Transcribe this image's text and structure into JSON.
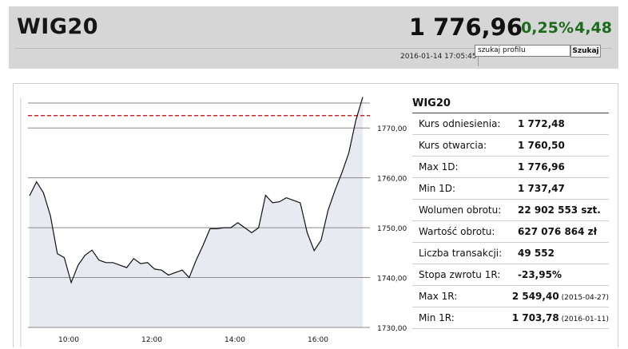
{
  "header": {
    "title": "WIG20",
    "price": "1 776,96",
    "change_pct": "0,25%",
    "change_abs": "4,48",
    "timestamp": "2016-01-14 17:05:45",
    "search_value": "szukaj profilu",
    "search_button": "Szukaj"
  },
  "colors": {
    "header_bg": "#d6d6d6",
    "positive": "#1c6b1c",
    "reference_line": "#e02020",
    "chart_fill": "#e8eaf2"
  },
  "stats": {
    "title": "WIG20",
    "rows": [
      {
        "label": "Kurs odniesienia:",
        "value": "1 772,48",
        "date": ""
      },
      {
        "label": "Kurs otwarcia:",
        "value": "1 760,50",
        "date": ""
      },
      {
        "label": "Max 1D:",
        "value": "1 776,96",
        "date": ""
      },
      {
        "label": "Min 1D:",
        "value": "1 737,47",
        "date": ""
      },
      {
        "label": "Wolumen obrotu:",
        "value": "22 902 553 szt.",
        "date": ""
      },
      {
        "label": "Wartość obrotu:",
        "value": "627 076 864 zł",
        "date": ""
      },
      {
        "label": "Liczba transakcji:",
        "value": "49 552",
        "date": ""
      },
      {
        "label": "Stopa zwrotu 1R:",
        "value": "-23,95%",
        "date": ""
      },
      {
        "label": "Max 1R:",
        "value": "2 549,40",
        "date": "(2015-04-27)"
      },
      {
        "label": "Min 1R:",
        "value": "1 703,78",
        "date": "(2016-01-11)"
      }
    ]
  },
  "chart_data": {
    "type": "area",
    "title": "",
    "xlabel": "",
    "ylabel": "",
    "x_ticks": [
      "10:00",
      "12:00",
      "14:00",
      "16:00"
    ],
    "y_ticks": [
      "1770,00",
      "1760,00",
      "1750,00",
      "1740,00",
      "1730,00"
    ],
    "ylim": [
      1730,
      1775
    ],
    "reference_level": 1772.48,
    "grid": true,
    "x": [
      "09:00",
      "09:10",
      "09:20",
      "09:30",
      "09:40",
      "09:50",
      "10:00",
      "10:10",
      "10:20",
      "10:30",
      "10:40",
      "10:50",
      "11:00",
      "11:10",
      "11:20",
      "11:30",
      "11:40",
      "11:50",
      "12:00",
      "12:10",
      "12:20",
      "12:30",
      "12:40",
      "12:50",
      "13:00",
      "13:10",
      "13:20",
      "13:30",
      "13:40",
      "13:50",
      "14:00",
      "14:10",
      "14:20",
      "14:30",
      "14:40",
      "14:50",
      "15:00",
      "15:10",
      "15:20",
      "15:30",
      "15:40",
      "15:50",
      "16:00",
      "16:10",
      "16:20",
      "16:30",
      "16:40",
      "16:50",
      "17:00"
    ],
    "values": [
      1756.4,
      1759.2,
      1757.0,
      1752.4,
      1744.8,
      1744.0,
      1739.0,
      1742.5,
      1744.5,
      1745.5,
      1743.5,
      1743.0,
      1743.0,
      1742.5,
      1742.0,
      1743.8,
      1742.8,
      1743.0,
      1741.7,
      1741.5,
      1740.5,
      1741.0,
      1741.5,
      1740.0,
      1743.5,
      1746.5,
      1749.8,
      1749.8,
      1750.0,
      1750.0,
      1751.0,
      1750.0,
      1749.0,
      1750.0,
      1756.5,
      1755.0,
      1755.2,
      1756.0,
      1755.5,
      1755.0,
      1749.0,
      1745.4,
      1747.5,
      1753.5,
      1757.5,
      1761.0,
      1765.0,
      1771.5,
      1776.2
    ]
  }
}
